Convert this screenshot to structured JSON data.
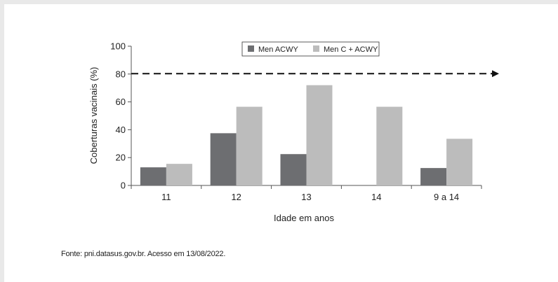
{
  "chart_data": {
    "type": "bar",
    "categories": [
      "11",
      "12",
      "13",
      "14",
      "9 a 14"
    ],
    "series": [
      {
        "name": "Men ACWY",
        "color": "#6d6e71",
        "values": [
          13,
          37.5,
          22.5,
          null,
          12.5
        ]
      },
      {
        "name": "Men C + ACWY",
        "color": "#bcbcbc",
        "values": [
          15.5,
          56.5,
          72,
          56.5,
          33.5
        ]
      }
    ],
    "xlabel": "Idade em anos",
    "ylabel": "Coberturas vacinais (%)",
    "ylim": [
      0,
      100
    ],
    "yticks": [
      0,
      20,
      40,
      60,
      80,
      100
    ],
    "reference_line": {
      "value": 80,
      "style": "dashed-arrow"
    },
    "legend_position": "top-center",
    "grid": false
  },
  "source": "Fonte: pni.datasus.gov.br. Acesso em 13/08/2022."
}
